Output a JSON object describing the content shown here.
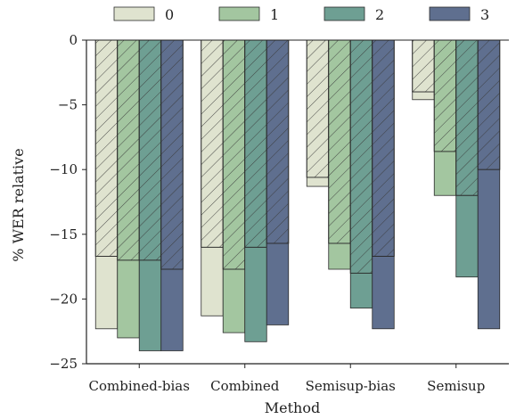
{
  "chart_data": {
    "type": "bar",
    "title": "",
    "xlabel": "Method",
    "ylabel": "% WER relative",
    "ylim": [
      -25,
      0
    ],
    "yticks": [
      0,
      -5,
      -10,
      -15,
      -20,
      -25
    ],
    "ytick_labels": [
      "0",
      "−5",
      "−10",
      "−15",
      "−20",
      "−25"
    ],
    "categories": [
      "Combined-bias",
      "Combined",
      "Semisup-bias",
      "Semisup"
    ],
    "legend_position": "top",
    "grid": false,
    "colors": [
      "#dfe3cf",
      "#a3c6a0",
      "#6e9f93",
      "#5f6f8f"
    ],
    "series": [
      {
        "name": "0",
        "values": [
          -22.3,
          -21.3,
          -11.3,
          -4.6
        ],
        "hatched_part": [
          -16.7,
          -16.0,
          -10.6,
          -4.0
        ]
      },
      {
        "name": "1",
        "values": [
          -23.0,
          -22.6,
          -17.7,
          -12.0
        ],
        "hatched_part": [
          -17.0,
          -17.7,
          -15.7,
          -8.6
        ]
      },
      {
        "name": "2",
        "values": [
          -24.0,
          -23.3,
          -20.7,
          -18.3
        ],
        "hatched_part": [
          -17.0,
          -16.0,
          -18.0,
          -12.0
        ]
      },
      {
        "name": "3",
        "values": [
          -24.0,
          -22.0,
          -22.3,
          -22.3
        ],
        "hatched_part": [
          -17.7,
          -15.7,
          -16.7,
          -10.0
        ]
      }
    ]
  }
}
